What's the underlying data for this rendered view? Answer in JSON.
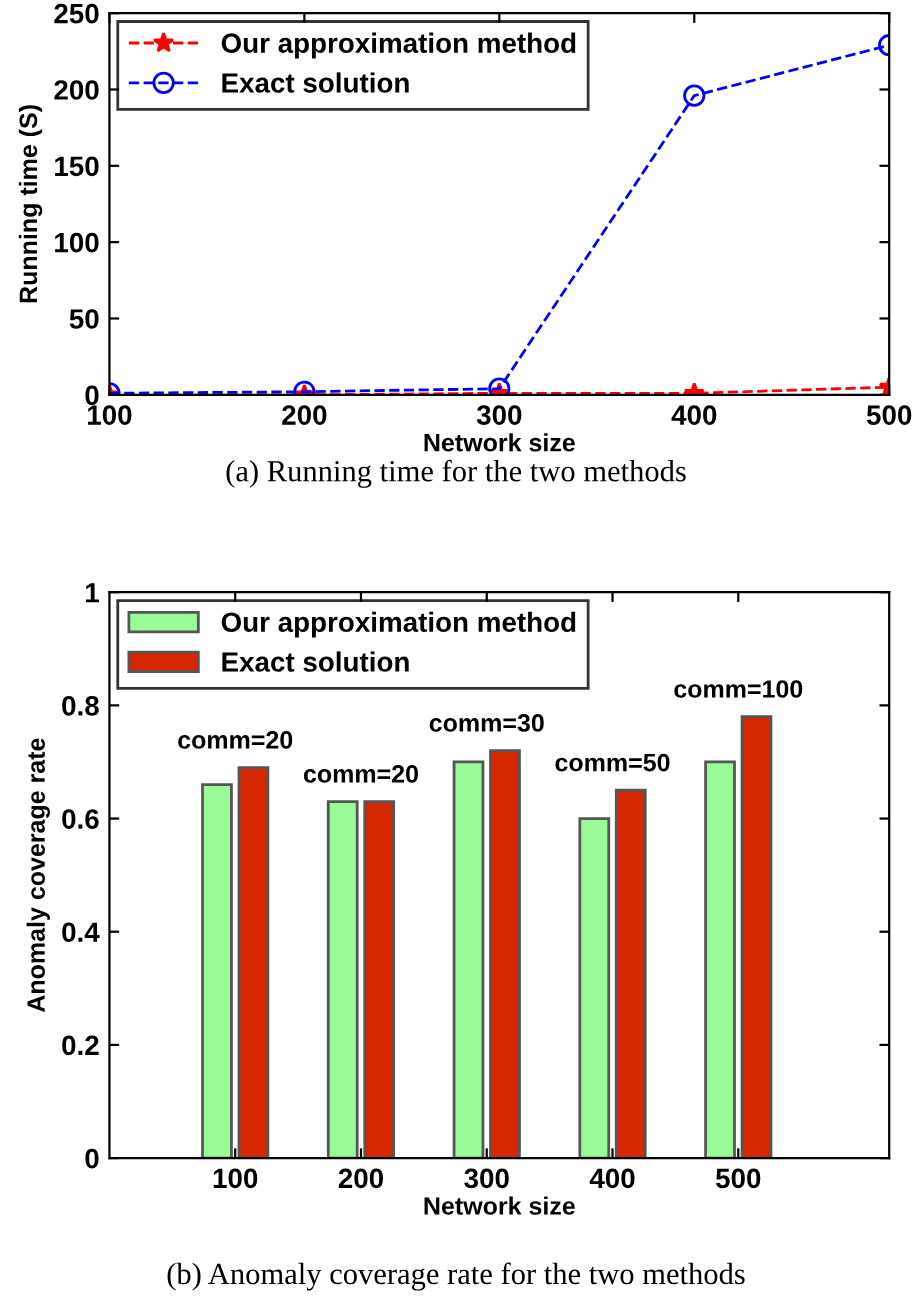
{
  "chart_data": [
    {
      "type": "line",
      "xlabel": "Network size",
      "ylabel": "Running time (S)",
      "x": [
        100,
        200,
        300,
        400,
        500
      ],
      "xlim": [
        100,
        500
      ],
      "xticks": [
        100,
        200,
        300,
        400,
        500
      ],
      "ylim": [
        0,
        250
      ],
      "yticks": [
        0,
        50,
        100,
        150,
        200,
        250
      ],
      "legend": "top left",
      "grid": false,
      "line_style": "dashed",
      "series": [
        {
          "name": "Our approximation method",
          "color": "#ff0000",
          "marker": "star",
          "values": [
            0,
            0,
            1,
            1,
            5
          ]
        },
        {
          "name": "Exact solution",
          "color": "#0000ff",
          "marker": "circle",
          "values": [
            1,
            2,
            4,
            196,
            229
          ]
        }
      ],
      "annotations": [
        "(a) Running time for the two methods"
      ]
    },
    {
      "type": "bar",
      "xlabel": "Network size",
      "ylabel": "Anomaly coverage rate",
      "categories": [
        "100",
        "200",
        "300",
        "400",
        "500"
      ],
      "ylim": [
        0,
        1
      ],
      "yticks": [
        0,
        0.2,
        0.4,
        0.6,
        0.8,
        1
      ],
      "legend": "top left",
      "grid": false,
      "series": [
        {
          "name": "Our approximation method",
          "color": "#98fb98",
          "values": [
            0.66,
            0.63,
            0.7,
            0.6,
            0.7
          ]
        },
        {
          "name": "Exact solution",
          "color": "#d62800",
          "values": [
            0.69,
            0.63,
            0.72,
            0.65,
            0.78
          ]
        }
      ],
      "annotations": [
        {
          "text": "comm=20",
          "x": "100",
          "y": 0.69
        },
        {
          "text": "comm=20",
          "x": "200",
          "y": 0.63
        },
        {
          "text": "comm=30",
          "x": "300",
          "y": 0.72
        },
        {
          "text": "comm=50",
          "x": "400",
          "y": 0.65
        },
        {
          "text": "comm=100",
          "x": "500",
          "y": 0.78
        },
        "(b) Anomaly coverage rate for the two methods"
      ]
    }
  ]
}
